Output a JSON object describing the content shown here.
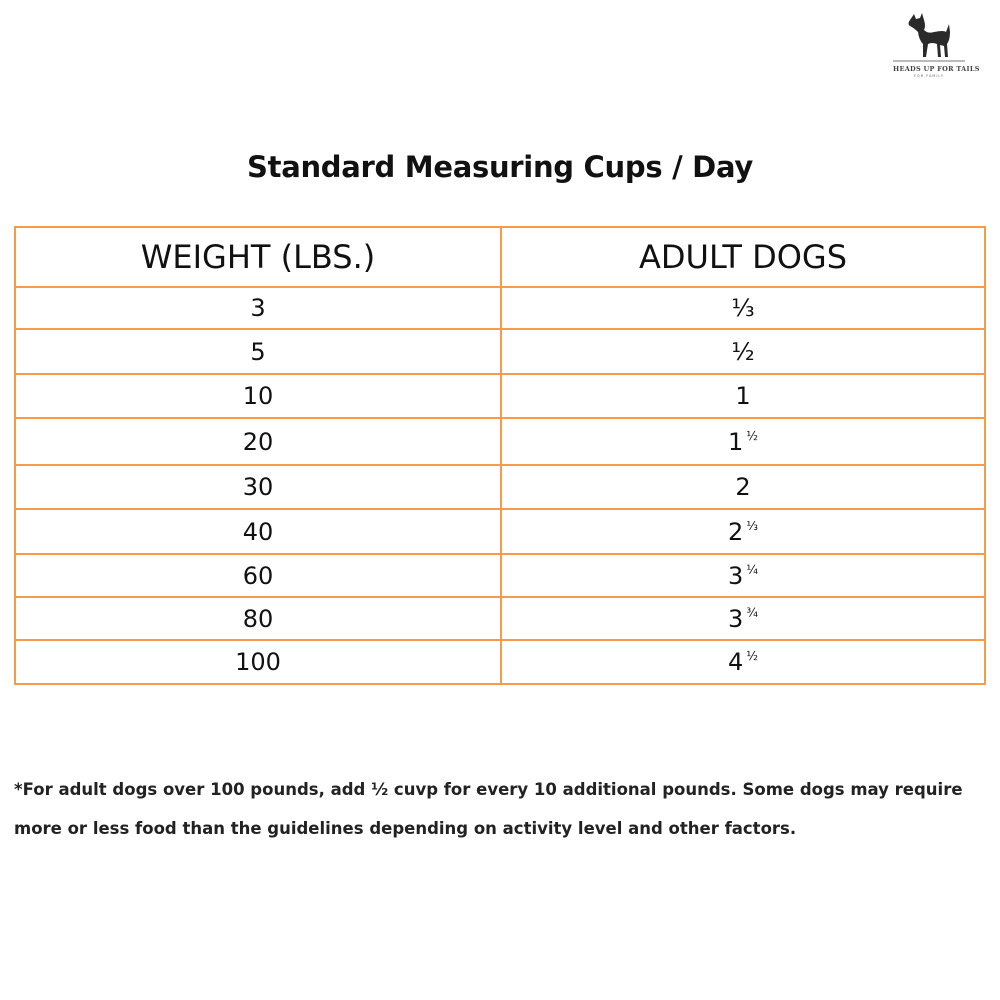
{
  "logo": {
    "brand": "HEADS UP FOR TAILS",
    "tagline": "FOR FAMILY"
  },
  "title": "Standard Measuring Cups / Day",
  "table": {
    "headers": [
      "WEIGHT (LBS.)",
      "ADULT DOGS"
    ],
    "rows": [
      {
        "weight": "3",
        "whole": "⅓",
        "frac": ""
      },
      {
        "weight": "5",
        "whole": "½",
        "frac": ""
      },
      {
        "weight": "10",
        "whole": "1",
        "frac": ""
      },
      {
        "weight": "20",
        "whole": "1",
        "frac": "½"
      },
      {
        "weight": "30",
        "whole": "2",
        "frac": ""
      },
      {
        "weight": "40",
        "whole": "2",
        "frac": "⅓"
      },
      {
        "weight": "60",
        "whole": "3",
        "frac": "¼"
      },
      {
        "weight": "80",
        "whole": "3",
        "frac": "¾"
      },
      {
        "weight": "100",
        "whole": "4",
        "frac": "½"
      }
    ],
    "border_color": "#f79a4a"
  },
  "footnote": "*For adult dogs over 100 pounds, add ½ cuvp for every 10 additional pounds. Some dogs may require more or less food than the guidelines depending on activity level and other factors."
}
